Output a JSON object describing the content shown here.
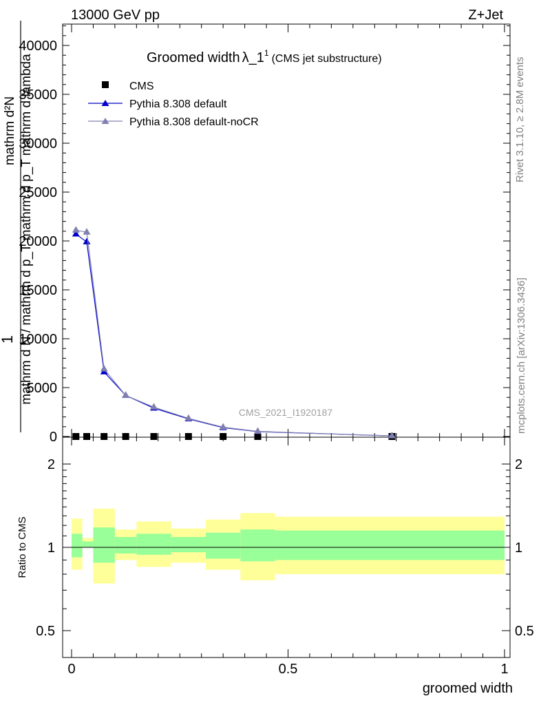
{
  "header": {
    "left": "13000 GeV pp",
    "right": "Z+Jet"
  },
  "side_text": {
    "rivet": "Rivet 3.1.10, ≥ 2.8M events",
    "mcplots": "mcplots.cern.ch [arXiv:1306.3436]"
  },
  "watermark": "CMS_2021_I1920187",
  "chart_data": {
    "type": "line",
    "title": "Groomed width",
    "title_lambda": "λ_1",
    "title_sup": "1",
    "subtitle": "(CMS jet substructure)",
    "xlabel": "groomed width",
    "ylabel_numer": "1",
    "ylabel_denom": "mathrm d N / mathrm d p_T mathrm d p_T mathrm d lambda",
    "ylabel_numer_stack": "mathrm d²N",
    "xlim": [
      0,
      1
    ],
    "ylim": [
      0,
      45000
    ],
    "x_ticks": [
      "0",
      "0.5",
      "1"
    ],
    "y_ticks": [
      "0",
      "5000",
      "10000",
      "15000",
      "20000",
      "25000",
      "30000",
      "35000",
      "40000"
    ],
    "legend_position": "top-left",
    "series": [
      {
        "name": "CMS",
        "color": "#000000",
        "marker": "square",
        "x": [
          0.01,
          0.035,
          0.075,
          0.125,
          0.19,
          0.27,
          0.35,
          0.43,
          0.74
        ],
        "y": [
          0,
          0,
          0,
          0,
          0,
          0,
          0,
          0,
          0
        ]
      },
      {
        "name": "Pythia 8.308 default",
        "color": "#0000c8",
        "marker": "triangle",
        "x": [
          0.01,
          0.035,
          0.075,
          0.125,
          0.19,
          0.27,
          0.35,
          0.43,
          0.74
        ],
        "y": [
          20700,
          19900,
          6600,
          4200,
          2900,
          1800,
          900,
          500,
          60
        ]
      },
      {
        "name": "Pythia 8.308 default-noCR",
        "color": "#8080b0",
        "marker": "triangle",
        "x": [
          0.01,
          0.035,
          0.075,
          0.125,
          0.19,
          0.27,
          0.35,
          0.43,
          0.74
        ],
        "y": [
          21100,
          20900,
          6900,
          4200,
          3000,
          1850,
          950,
          520,
          60
        ]
      }
    ],
    "ratio": {
      "ylabel": "Ratio to CMS",
      "y_ticks": [
        "0.5",
        "1",
        "2"
      ],
      "ylim": [
        0.35,
        2.3
      ],
      "bins": [
        {
          "lo": 0.0,
          "hi": 0.025,
          "inner": [
            0.92,
            1.12
          ],
          "outer": [
            0.83,
            1.27
          ]
        },
        {
          "lo": 0.025,
          "hi": 0.05,
          "inner": [
            1.0,
            1.05
          ],
          "outer": [
            1.0,
            1.08
          ]
        },
        {
          "lo": 0.05,
          "hi": 0.1,
          "inner": [
            0.88,
            1.18
          ],
          "outer": [
            0.74,
            1.38
          ]
        },
        {
          "lo": 0.1,
          "hi": 0.15,
          "inner": [
            0.95,
            1.09
          ],
          "outer": [
            0.9,
            1.16
          ]
        },
        {
          "lo": 0.15,
          "hi": 0.23,
          "inner": [
            0.94,
            1.12
          ],
          "outer": [
            0.85,
            1.24
          ]
        },
        {
          "lo": 0.23,
          "hi": 0.31,
          "inner": [
            0.96,
            1.09
          ],
          "outer": [
            0.88,
            1.17
          ]
        },
        {
          "lo": 0.31,
          "hi": 0.39,
          "inner": [
            0.91,
            1.13
          ],
          "outer": [
            0.83,
            1.26
          ]
        },
        {
          "lo": 0.39,
          "hi": 0.47,
          "inner": [
            0.89,
            1.16
          ],
          "outer": [
            0.76,
            1.33
          ]
        },
        {
          "lo": 0.47,
          "hi": 1.0,
          "inner": [
            0.9,
            1.15
          ],
          "outer": [
            0.8,
            1.29
          ]
        }
      ]
    }
  }
}
